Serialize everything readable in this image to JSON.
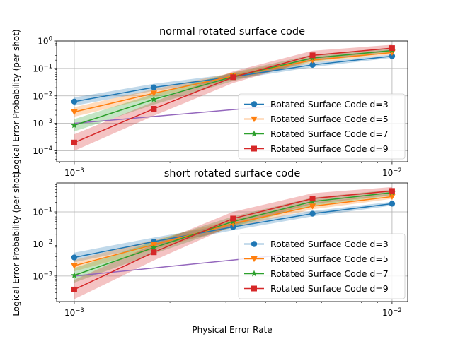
{
  "chart_data": [
    {
      "type": "line",
      "title": "normal rotated surface code",
      "ylabel": "Logical Error Probability (per shot)",
      "xlabel": "",
      "xscale": "log",
      "yscale": "log",
      "xlim": [
        0.00088,
        0.0112
      ],
      "ylim": [
        4e-05,
        1.0
      ],
      "xticks": [
        {
          "value": 0.001,
          "base": "10",
          "exp": "−3"
        },
        {
          "value": 0.01,
          "base": "10",
          "exp": "−2"
        }
      ],
      "yticks": [
        {
          "value": 0.0001,
          "base": "10",
          "exp": "−4"
        },
        {
          "value": 0.001,
          "base": "10",
          "exp": "−3"
        },
        {
          "value": 0.01,
          "base": "10",
          "exp": "−2"
        },
        {
          "value": 0.1,
          "base": "10",
          "exp": "−1"
        },
        {
          "value": 1,
          "base": "10",
          "exp": "0"
        }
      ],
      "grid": true,
      "legend_position": "lower-right",
      "x": [
        0.001,
        0.00178,
        0.00316,
        0.00562,
        0.01
      ],
      "series": [
        {
          "name": "Rotated Surface Code d=3",
          "color": "#1f77b4",
          "marker": "circle",
          "values": [
            0.0062,
            0.0205,
            0.05,
            0.135,
            0.28
          ],
          "band": 0.3
        },
        {
          "name": "Rotated Surface Code d=5",
          "color": "#ff7f0e",
          "marker": "triangle-down",
          "values": [
            0.0026,
            0.0125,
            0.053,
            0.2,
            0.38
          ],
          "band": 0.35
        },
        {
          "name": "Rotated Surface Code d=7",
          "color": "#2ca02c",
          "marker": "star",
          "values": [
            0.00085,
            0.0075,
            0.05,
            0.24,
            0.45
          ],
          "band": 0.45
        },
        {
          "name": "Rotated Surface Code d=9",
          "color": "#d62728",
          "marker": "square",
          "values": [
            0.0002,
            0.0034,
            0.048,
            0.3,
            0.55
          ],
          "band": 0.6
        }
      ],
      "reference_line": {
        "color": "#9467bd",
        "x": [
          0.001,
          0.0045
        ],
        "values": [
          0.001,
          0.0045
        ]
      }
    },
    {
      "type": "line",
      "title": "short rotated surface code",
      "ylabel": "Logical Error Probability (per shot)",
      "xlabel": "Physical Error Rate",
      "xscale": "log",
      "yscale": "log",
      "xlim": [
        0.00088,
        0.0112
      ],
      "ylim": [
        0.00016,
        0.8
      ],
      "xticks": [
        {
          "value": 0.001,
          "base": "10",
          "exp": "−3"
        },
        {
          "value": 0.01,
          "base": "10",
          "exp": "−2"
        }
      ],
      "yticks": [
        {
          "value": 0.001,
          "base": "10",
          "exp": "−3"
        },
        {
          "value": 0.01,
          "base": "10",
          "exp": "−2"
        },
        {
          "value": 0.1,
          "base": "10",
          "exp": "−1"
        }
      ],
      "grid": true,
      "legend_position": "lower-right",
      "x": [
        0.001,
        0.00178,
        0.00316,
        0.00562,
        0.01
      ],
      "series": [
        {
          "name": "Rotated Surface Code d=3",
          "color": "#1f77b4",
          "marker": "circle",
          "values": [
            0.0038,
            0.0118,
            0.034,
            0.088,
            0.18
          ],
          "band": 0.3
        },
        {
          "name": "Rotated Surface Code d=5",
          "color": "#ff7f0e",
          "marker": "triangle-down",
          "values": [
            0.0021,
            0.0095,
            0.043,
            0.15,
            0.3
          ],
          "band": 0.35
        },
        {
          "name": "Rotated Surface Code d=7",
          "color": "#2ca02c",
          "marker": "star",
          "values": [
            0.00105,
            0.0077,
            0.05,
            0.21,
            0.4
          ],
          "band": 0.45
        },
        {
          "name": "Rotated Surface Code d=9",
          "color": "#d62728",
          "marker": "square",
          "values": [
            0.00038,
            0.0055,
            0.062,
            0.26,
            0.45
          ],
          "band": 0.6
        }
      ],
      "reference_line": {
        "color": "#9467bd",
        "x": [
          0.001,
          0.0045
        ],
        "values": [
          0.001,
          0.0045
        ]
      }
    }
  ]
}
